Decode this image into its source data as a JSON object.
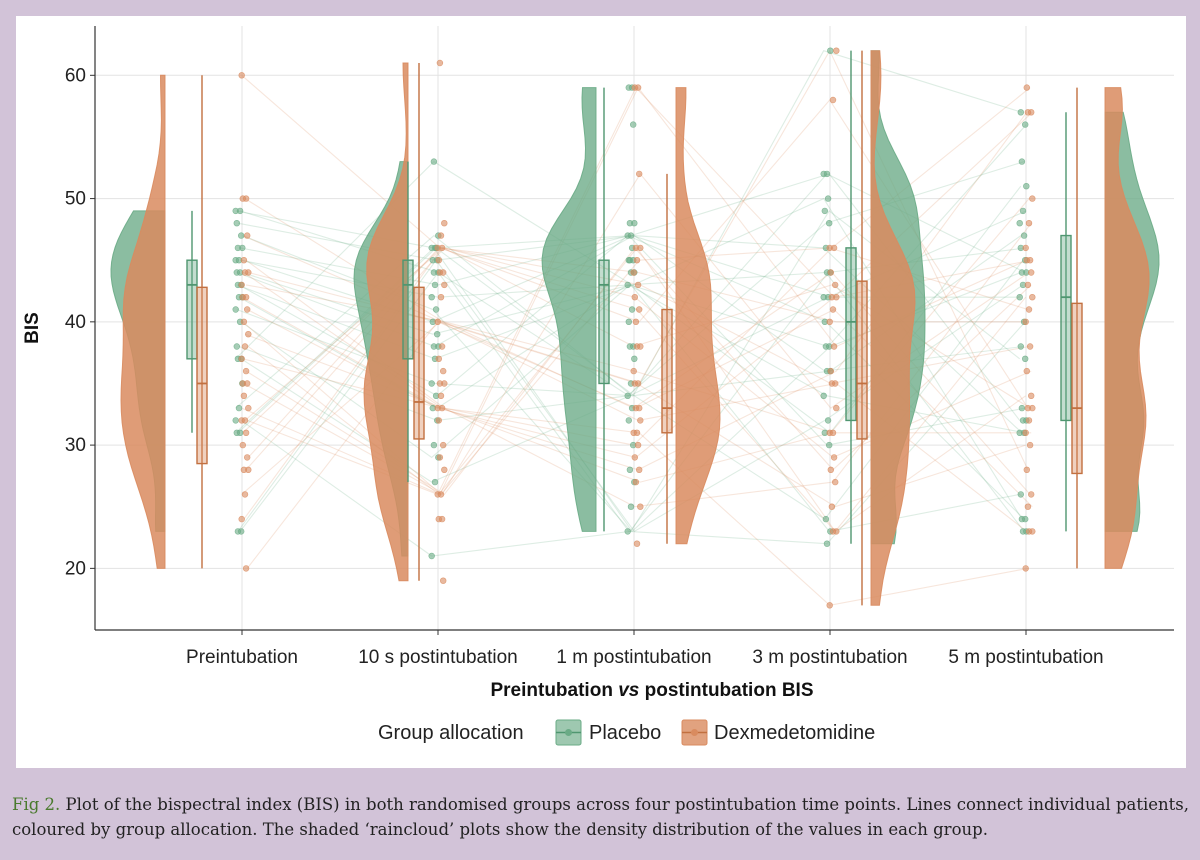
{
  "colors": {
    "placebo": "#6aab86",
    "dexmedetomidine": "#d98b5f"
  },
  "chart_data": {
    "type": "raincloud",
    "xlabel_parts": [
      "Preintubation ",
      "vs",
      " postintubation BIS"
    ],
    "ylabel": "BIS",
    "ylim": [
      15,
      64
    ],
    "yticks": [
      20,
      30,
      40,
      50,
      60
    ],
    "grid": true,
    "legend_position": "bottom",
    "legend_title": "Group allocation",
    "categories": [
      "Preintubation",
      "10 s postintubation",
      "1 m postintubation",
      "3 m postintubation",
      "5 m postintubation"
    ],
    "series": [
      {
        "name": "Placebo",
        "color_key": "placebo",
        "box": [
          {
            "min": 31,
            "q1": 37,
            "median": 43,
            "q3": 45,
            "max": 49
          },
          {
            "min": 27,
            "q1": 37,
            "median": 43,
            "q3": 45,
            "max": 53
          },
          {
            "min": 23,
            "q1": 35,
            "median": 43,
            "q3": 45,
            "max": 59
          },
          {
            "min": 22,
            "q1": 32,
            "median": 40,
            "q3": 46,
            "max": 62
          },
          {
            "min": 23,
            "q1": 32,
            "median": 42,
            "q3": 47,
            "max": 57
          }
        ],
        "points": [
          [
            49,
            49,
            48,
            47,
            46,
            46,
            45,
            45,
            44,
            44,
            43,
            43,
            42,
            42,
            41,
            40,
            38,
            37,
            37,
            35,
            33,
            32,
            31,
            31,
            23,
            23
          ],
          [
            53,
            47,
            46,
            46,
            46,
            45,
            45,
            44,
            44,
            43,
            42,
            41,
            40,
            39,
            38,
            38,
            37,
            35,
            34,
            33,
            32,
            30,
            29,
            27,
            21
          ],
          [
            59,
            59,
            56,
            48,
            48,
            47,
            47,
            46,
            45,
            45,
            45,
            44,
            44,
            43,
            41,
            40,
            38,
            38,
            37,
            35,
            34,
            33,
            32,
            30,
            28,
            27,
            25,
            23
          ],
          [
            62,
            52,
            52,
            50,
            49,
            48,
            46,
            44,
            44,
            42,
            42,
            40,
            38,
            38,
            36,
            36,
            34,
            32,
            31,
            30,
            24,
            23,
            22
          ],
          [
            57,
            56,
            53,
            51,
            49,
            48,
            47,
            46,
            45,
            44,
            44,
            43,
            42,
            40,
            38,
            37,
            33,
            32,
            32,
            31,
            31,
            26,
            24,
            24,
            23,
            23
          ]
        ]
      },
      {
        "name": "Dexmedetomidine",
        "color_key": "dexmedetomidine",
        "box": [
          {
            "min": 20,
            "q1": 28.5,
            "median": 35,
            "q3": 42.8,
            "max": 60
          },
          {
            "min": 19,
            "q1": 30.5,
            "median": 33.5,
            "q3": 42.8,
            "max": 61
          },
          {
            "min": 22,
            "q1": 31,
            "median": 33,
            "q3": 41,
            "max": 52
          },
          {
            "min": 17,
            "q1": 30.5,
            "median": 35,
            "q3": 43.3,
            "max": 62
          },
          {
            "min": 20,
            "q1": 27.7,
            "median": 33,
            "q3": 41.5,
            "max": 59
          }
        ],
        "points": [
          [
            60,
            50,
            50,
            47,
            45,
            44,
            44,
            43,
            42,
            42,
            41,
            40,
            39,
            38,
            37,
            36,
            35,
            35,
            34,
            33,
            32,
            32,
            31,
            30,
            29,
            28,
            28,
            26,
            24,
            20
          ],
          [
            61,
            48,
            47,
            46,
            46,
            45,
            44,
            44,
            43,
            42,
            40,
            38,
            37,
            36,
            35,
            35,
            34,
            33,
            33,
            32,
            30,
            29,
            28,
            26,
            26,
            24,
            24,
            19
          ],
          [
            59,
            59,
            52,
            46,
            46,
            45,
            44,
            43,
            42,
            41,
            40,
            38,
            38,
            36,
            35,
            35,
            33,
            33,
            32,
            31,
            31,
            30,
            29,
            28,
            27,
            25,
            22
          ],
          [
            62,
            58,
            46,
            46,
            44,
            43,
            42,
            42,
            41,
            40,
            38,
            36,
            35,
            35,
            33,
            31,
            31,
            29,
            28,
            27,
            25,
            23,
            23,
            17
          ],
          [
            59,
            57,
            57,
            50,
            48,
            46,
            45,
            45,
            44,
            43,
            42,
            41,
            40,
            38,
            36,
            34,
            33,
            33,
            32,
            31,
            30,
            28,
            26,
            25,
            23,
            23,
            20
          ]
        ]
      }
    ]
  },
  "caption": {
    "label": "Fig 2.",
    "text": " Plot of the bispectral index (BIS) in both randomised groups across four postintubation time points. Lines connect individual patients, coloured by group allocation. The shaded ‘raincloud’ plots show the density distribution of the values in each group."
  }
}
